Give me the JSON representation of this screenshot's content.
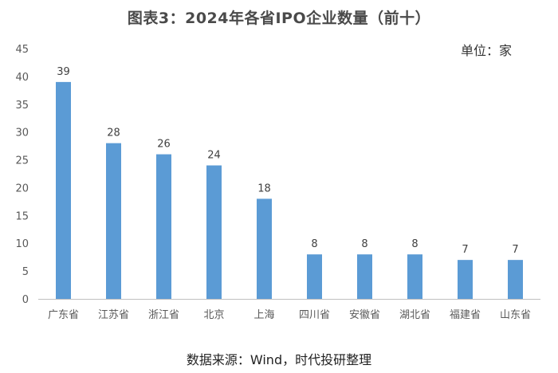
{
  "chart_data": {
    "type": "bar",
    "title": "图表3：2024年各省IPO企业数量（前十）",
    "unit": "单位：家",
    "source": "数据来源：Wind，时代投研整理",
    "categories": [
      "广东省",
      "江苏省",
      "浙江省",
      "北京",
      "上海",
      "四川省",
      "安徽省",
      "湖北省",
      "福建省",
      "山东省"
    ],
    "values": [
      39,
      28,
      26,
      24,
      18,
      8,
      8,
      8,
      7,
      7
    ],
    "ylim": [
      0,
      45
    ],
    "yticks": [
      0,
      5,
      10,
      15,
      20,
      25,
      30,
      35,
      40,
      45
    ],
    "grid": false,
    "legend": "none",
    "bar_color": "#5b9bd5",
    "axis_color": "#bfbfbf"
  }
}
